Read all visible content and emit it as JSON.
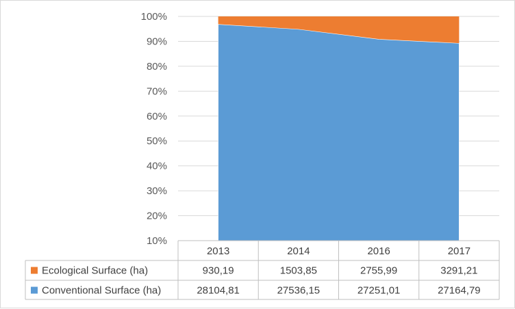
{
  "chart_data": {
    "type": "area",
    "stacked": "percent",
    "categories": [
      "2013",
      "2014",
      "2016",
      "2017"
    ],
    "y_ticks": [
      "10%",
      "20%",
      "30%",
      "40%",
      "50%",
      "60%",
      "70%",
      "80%",
      "90%",
      "100%"
    ],
    "ylim": [
      0.1,
      1.0
    ],
    "grid": true,
    "legend": "data-table",
    "series": [
      {
        "name": "Ecological Surface (ha)",
        "values": [
          930.19,
          1503.85,
          2755.99,
          3291.21
        ],
        "labels": [
          "930,19",
          "1503,85",
          "2755,99",
          "3291,21"
        ],
        "color": "#ed7d31"
      },
      {
        "name": "Conventional Surface (ha)",
        "values": [
          28104.81,
          27536.15,
          27251.01,
          27164.79
        ],
        "labels": [
          "28104,81",
          "27536,15",
          "27251,01",
          "27164,79"
        ],
        "color": "#5b9bd5"
      }
    ]
  }
}
